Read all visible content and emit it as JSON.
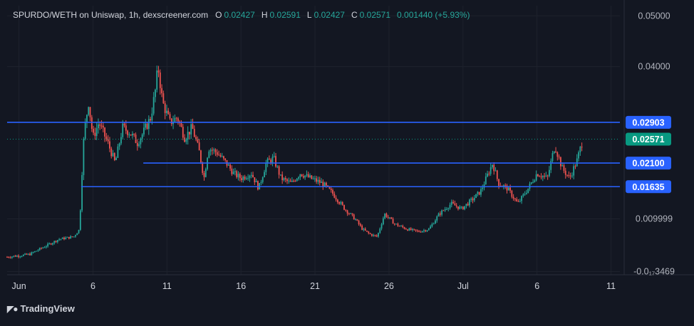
{
  "header": {
    "title": "SPURDO/WETH on Uniswap, 1h, dexscreener.com",
    "ohlc": [
      {
        "label": "O",
        "value": "0.02427"
      },
      {
        "label": "H",
        "value": "0.02591"
      },
      {
        "label": "L",
        "value": "0.02427"
      },
      {
        "label": "C",
        "value": "0.02571"
      }
    ],
    "change": "0.001440 (+5.93%)"
  },
  "branding": {
    "logo_text": "TradingView",
    "logo_icon": "tradingview-logo-icon"
  },
  "colors": {
    "background": "#131722",
    "grid": "#1e222d",
    "up": "#26a69a",
    "down": "#ef5350",
    "level_line": "#2962ff",
    "label_blue": "#2962ff",
    "label_green": "#089981",
    "axis_text": "#b2b5be"
  },
  "chart_data": {
    "type": "candlestick",
    "title": "SPURDO/WETH on Uniswap, 1h, dexscreener.com",
    "x_ticks": [
      "Jun",
      "6",
      "11",
      "16",
      "21",
      "26",
      "Jul",
      "6",
      "11"
    ],
    "y_ticks": [
      "0.05000",
      "0.04000",
      "0.009999",
      "-0.0₁₇3469"
    ],
    "y_tick_values": [
      0.05,
      0.04,
      0.009999,
      -0.0003469
    ],
    "ylim": [
      -0.001,
      0.052
    ],
    "grid": true,
    "price_levels": [
      {
        "label": "0.02903",
        "value": 0.02903,
        "kind": "horizontal-line"
      },
      {
        "label": "0.02100",
        "value": 0.021,
        "kind": "horizontal-line"
      },
      {
        "label": "0.01635",
        "value": 0.01635,
        "kind": "horizontal-line"
      }
    ],
    "current_price": {
      "label": "0.02571",
      "value": 0.02571
    },
    "close_path": [
      [
        0,
        0.0025
      ],
      [
        1.5,
        0.003
      ],
      [
        2.5,
        0.0045
      ],
      [
        3.5,
        0.006
      ],
      [
        4.5,
        0.0065
      ],
      [
        4.9,
        0.008
      ],
      [
        5.0,
        0.016
      ],
      [
        5.2,
        0.027
      ],
      [
        5.5,
        0.033
      ],
      [
        5.8,
        0.026
      ],
      [
        6.2,
        0.029
      ],
      [
        6.8,
        0.025
      ],
      [
        7.3,
        0.021
      ],
      [
        7.8,
        0.028
      ],
      [
        8.3,
        0.027
      ],
      [
        8.8,
        0.025
      ],
      [
        9.2,
        0.027
      ],
      [
        9.7,
        0.03
      ],
      [
        10.0,
        0.035
      ],
      [
        10.2,
        0.04
      ],
      [
        10.5,
        0.033
      ],
      [
        11.0,
        0.029
      ],
      [
        11.5,
        0.03
      ],
      [
        12.0,
        0.026
      ],
      [
        12.5,
        0.028
      ],
      [
        13.0,
        0.023
      ],
      [
        13.3,
        0.018
      ],
      [
        13.6,
        0.024
      ],
      [
        14.2,
        0.023
      ],
      [
        14.8,
        0.021
      ],
      [
        15.3,
        0.019
      ],
      [
        15.8,
        0.018
      ],
      [
        16.5,
        0.019
      ],
      [
        17.0,
        0.016
      ],
      [
        17.5,
        0.021
      ],
      [
        18.0,
        0.022
      ],
      [
        18.5,
        0.018
      ],
      [
        19.2,
        0.017
      ],
      [
        19.8,
        0.019
      ],
      [
        20.5,
        0.018
      ],
      [
        21.3,
        0.017
      ],
      [
        22.0,
        0.015
      ],
      [
        22.8,
        0.012
      ],
      [
        23.5,
        0.01
      ],
      [
        24.0,
        0.008
      ],
      [
        24.5,
        0.007
      ],
      [
        25.0,
        0.0065
      ],
      [
        25.5,
        0.011
      ],
      [
        26.2,
        0.009
      ],
      [
        27.0,
        0.008
      ],
      [
        27.8,
        0.0075
      ],
      [
        28.5,
        0.008
      ],
      [
        29.2,
        0.011
      ],
      [
        30.0,
        0.013
      ],
      [
        30.7,
        0.012
      ],
      [
        31.5,
        0.014
      ],
      [
        32.0,
        0.0155
      ],
      [
        32.8,
        0.021
      ],
      [
        33.2,
        0.017
      ],
      [
        33.8,
        0.016
      ],
      [
        34.5,
        0.013
      ],
      [
        35.2,
        0.016
      ],
      [
        35.8,
        0.019
      ],
      [
        36.5,
        0.018
      ],
      [
        37.0,
        0.0245
      ],
      [
        37.5,
        0.02
      ],
      [
        38.0,
        0.018
      ],
      [
        38.5,
        0.0215
      ],
      [
        38.9,
        0.0257
      ]
    ]
  }
}
